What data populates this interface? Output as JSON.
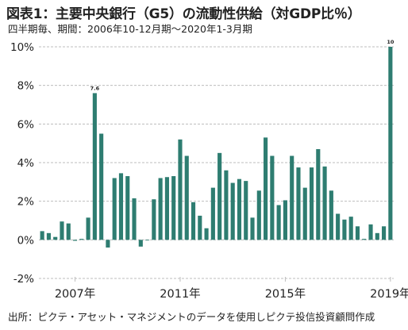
{
  "header": {
    "title": "図表1：主要中央銀行（G5）の流動性供給（対GDP比％）",
    "subtitle": "四半期毎、期間：2006年10-12月期～2020年1-3月期"
  },
  "footer": {
    "source": "出所：ピクテ・アセット・マネジメントのデータを使用しピクテ投信投資顧問作成"
  },
  "colors": {
    "bar": "#2e7d71",
    "grid": "#bdbdbd",
    "text": "#222222"
  },
  "chart_data": {
    "type": "bar",
    "xlabel": "",
    "ylabel": "",
    "ylim": [
      -2,
      10
    ],
    "yticks": [
      -2,
      0,
      2,
      4,
      6,
      8,
      10
    ],
    "ytick_labels": [
      "-2%",
      "0%",
      "2%",
      "4%",
      "6%",
      "8%",
      "10%"
    ],
    "grid": true,
    "x_tick_labels": [
      {
        "label": "2007年",
        "index": 5
      },
      {
        "label": "2011年",
        "index": 21
      },
      {
        "label": "2015年",
        "index": 37
      },
      {
        "label": "2019年",
        "index": 53
      }
    ],
    "categories": [
      "2006Q4",
      "2007Q1",
      "2007Q2",
      "2007Q3",
      "2007Q4",
      "2008Q1",
      "2008Q2",
      "2008Q3",
      "2008Q4",
      "2009Q1",
      "2009Q2",
      "2009Q3",
      "2009Q4",
      "2010Q1",
      "2010Q2",
      "2010Q3",
      "2010Q4",
      "2011Q1",
      "2011Q2",
      "2011Q3",
      "2011Q4",
      "2012Q1",
      "2012Q2",
      "2012Q3",
      "2012Q4",
      "2013Q1",
      "2013Q2",
      "2013Q3",
      "2013Q4",
      "2014Q1",
      "2014Q2",
      "2014Q3",
      "2014Q4",
      "2015Q1",
      "2015Q2",
      "2015Q3",
      "2015Q4",
      "2016Q1",
      "2016Q2",
      "2016Q3",
      "2016Q4",
      "2017Q1",
      "2017Q2",
      "2017Q3",
      "2017Q4",
      "2018Q1",
      "2018Q2",
      "2018Q3",
      "2018Q4",
      "2019Q1",
      "2019Q2",
      "2019Q3",
      "2019Q4",
      "2020Q1"
    ],
    "values": [
      0.45,
      0.35,
      0.15,
      0.95,
      0.85,
      -0.05,
      0.05,
      1.15,
      7.6,
      5.5,
      -0.4,
      3.2,
      3.45,
      3.3,
      2.15,
      -0.35,
      0.0,
      2.1,
      3.2,
      3.25,
      3.3,
      5.2,
      4.35,
      1.95,
      1.25,
      0.6,
      2.7,
      4.5,
      3.6,
      2.95,
      3.15,
      3.05,
      1.15,
      2.55,
      5.3,
      4.35,
      1.8,
      2.05,
      4.35,
      3.75,
      2.7,
      3.75,
      4.7,
      3.8,
      2.55,
      1.35,
      1.05,
      1.2,
      0.7,
      0.05,
      0.8,
      0.35,
      0.7,
      10.0
    ],
    "data_labels": [
      {
        "index": 8,
        "text": "7.6"
      },
      {
        "index": 53,
        "text": "10"
      }
    ]
  }
}
